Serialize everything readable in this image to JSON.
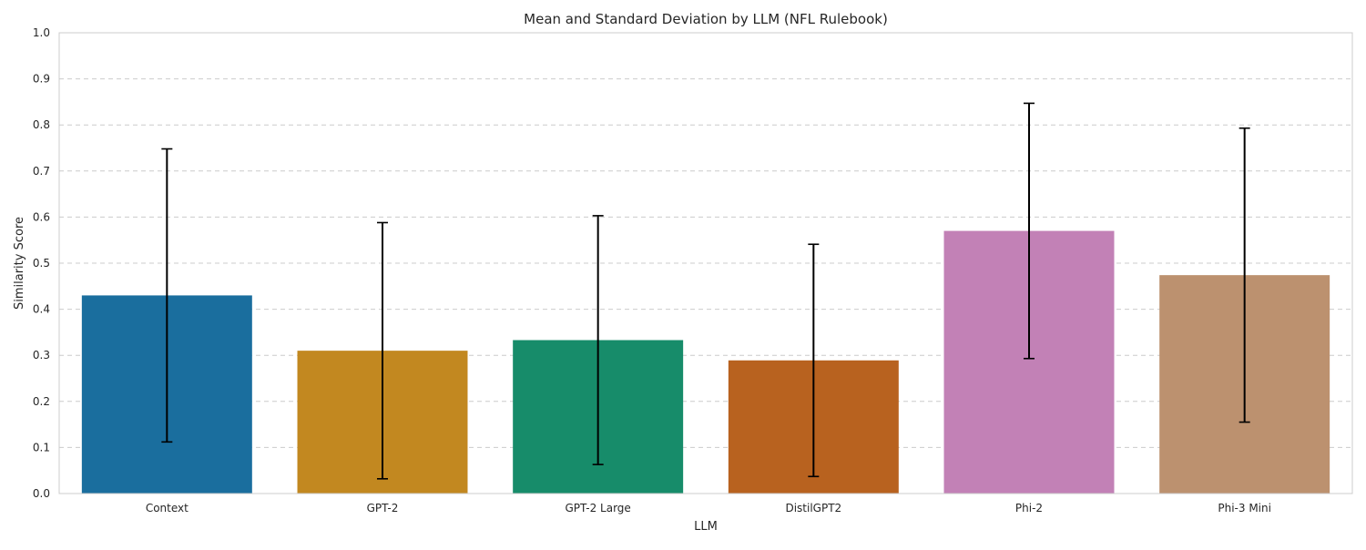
{
  "chart_data": {
    "type": "bar",
    "title": "Mean and Standard Deviation by LLM (NFL Rulebook)",
    "xlabel": "LLM",
    "ylabel": "Similarity Score",
    "ylim": [
      0,
      1.0
    ],
    "yticks": [
      "0.0",
      "0.1",
      "0.2",
      "0.3",
      "0.4",
      "0.5",
      "0.6",
      "0.7",
      "0.8",
      "0.9",
      "1.0"
    ],
    "grid": true,
    "categories": [
      "Context",
      "GPT-2",
      "GPT-2 Large",
      "DistilGPT2",
      "Phi-2",
      "Phi-3 Mini"
    ],
    "values": [
      0.43,
      0.31,
      0.333,
      0.289,
      0.57,
      0.474
    ],
    "std": [
      0.318,
      0.278,
      0.27,
      0.252,
      0.277,
      0.319
    ],
    "colors": [
      "#1a6e9e",
      "#c28820",
      "#178c6a",
      "#b8621f",
      "#c281b6",
      "#bc916f"
    ]
  }
}
